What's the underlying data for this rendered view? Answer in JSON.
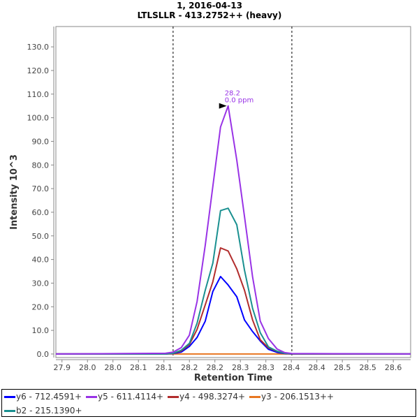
{
  "chart_data": {
    "type": "line",
    "title": "1, 2016-04-13",
    "subtitle": "LTLSLLR - 413.2752++ (heavy)",
    "xlabel": "Retention Time",
    "ylabel": "Intensity 10^3",
    "xlim": [
      27.888,
      28.584
    ],
    "ylim": [
      -1.5,
      138.6
    ],
    "grid": false,
    "x_ticks": [
      27.9,
      27.95,
      28.0,
      28.05,
      28.1,
      28.15,
      28.2,
      28.25,
      28.3,
      28.35,
      28.4,
      28.45,
      28.5,
      28.55
    ],
    "x_tick_labels": [
      "27.9",
      "28.0",
      "28.0",
      "28.1",
      "28.1",
      "28.2",
      "28.2",
      "28.3",
      "28.3",
      "28.4",
      "28.4",
      "28.5",
      "28.5",
      "28.6"
    ],
    "y_ticks": [
      0,
      10,
      20,
      30,
      40,
      50,
      60,
      70,
      80,
      90,
      100,
      110,
      120,
      130
    ],
    "y_tick_labels": [
      "0.0",
      "10.0",
      "20.0",
      "30.0",
      "40.0",
      "50.0",
      "60.0",
      "70.0",
      "80.0",
      "90.0",
      "100.0",
      "110.0",
      "120.0",
      "130.0"
    ],
    "boundaries": [
      28.118,
      28.351
    ],
    "x": [
      27.888,
      28.103,
      28.118,
      28.134,
      28.15,
      28.165,
      28.181,
      28.196,
      28.211,
      28.226,
      28.243,
      28.258,
      28.274,
      28.289,
      28.305,
      28.322,
      28.337,
      28.351,
      28.584
    ],
    "series": [
      {
        "name": "y6 - 712.4591+",
        "color": "#0000ff",
        "values": [
          0,
          0,
          0.2,
          0.8,
          3.2,
          7,
          13.9,
          26.5,
          32.8,
          29.2,
          24.2,
          14.4,
          9.5,
          5.5,
          2,
          0.7,
          0.2,
          0,
          0
        ]
      },
      {
        "name": "y5 - 611.4114+",
        "color": "#9933e6",
        "values": [
          0,
          0.3,
          0.8,
          2.7,
          8.0,
          22.2,
          46,
          71,
          96.1,
          105,
          82,
          58.2,
          32.6,
          13.9,
          6.5,
          2.1,
          0.6,
          0.2,
          0
        ]
      },
      {
        "name": "y4 - 498.3274+",
        "color": "#b22d2d",
        "values": [
          0,
          0,
          0.3,
          1.3,
          4,
          10.4,
          20.8,
          30.6,
          44.9,
          43.6,
          36,
          27,
          14.4,
          6,
          2.6,
          1.1,
          0.3,
          0,
          0
        ]
      },
      {
        "name": "y3 - 206.1513++",
        "color": "#e87722",
        "values": [
          0,
          0,
          0,
          0,
          0,
          0,
          0,
          0,
          0,
          0,
          0,
          0,
          0,
          0,
          0,
          0,
          0,
          0,
          0
        ]
      },
      {
        "name": "b2 - 215.1390+",
        "color": "#1a9090",
        "values": [
          0,
          0,
          0.3,
          1.6,
          4.5,
          13,
          27,
          38.5,
          60.7,
          61.7,
          54.7,
          35.5,
          19.3,
          9,
          3,
          1.2,
          0.3,
          0.1,
          0
        ]
      }
    ],
    "draw_order": [
      3,
      0,
      2,
      4,
      1
    ],
    "annotation": {
      "x": 28.226,
      "y": 105,
      "line1": "28.2",
      "line2": "0.0 ppm",
      "color": "#9933e6"
    },
    "legend_position": "bottom"
  }
}
